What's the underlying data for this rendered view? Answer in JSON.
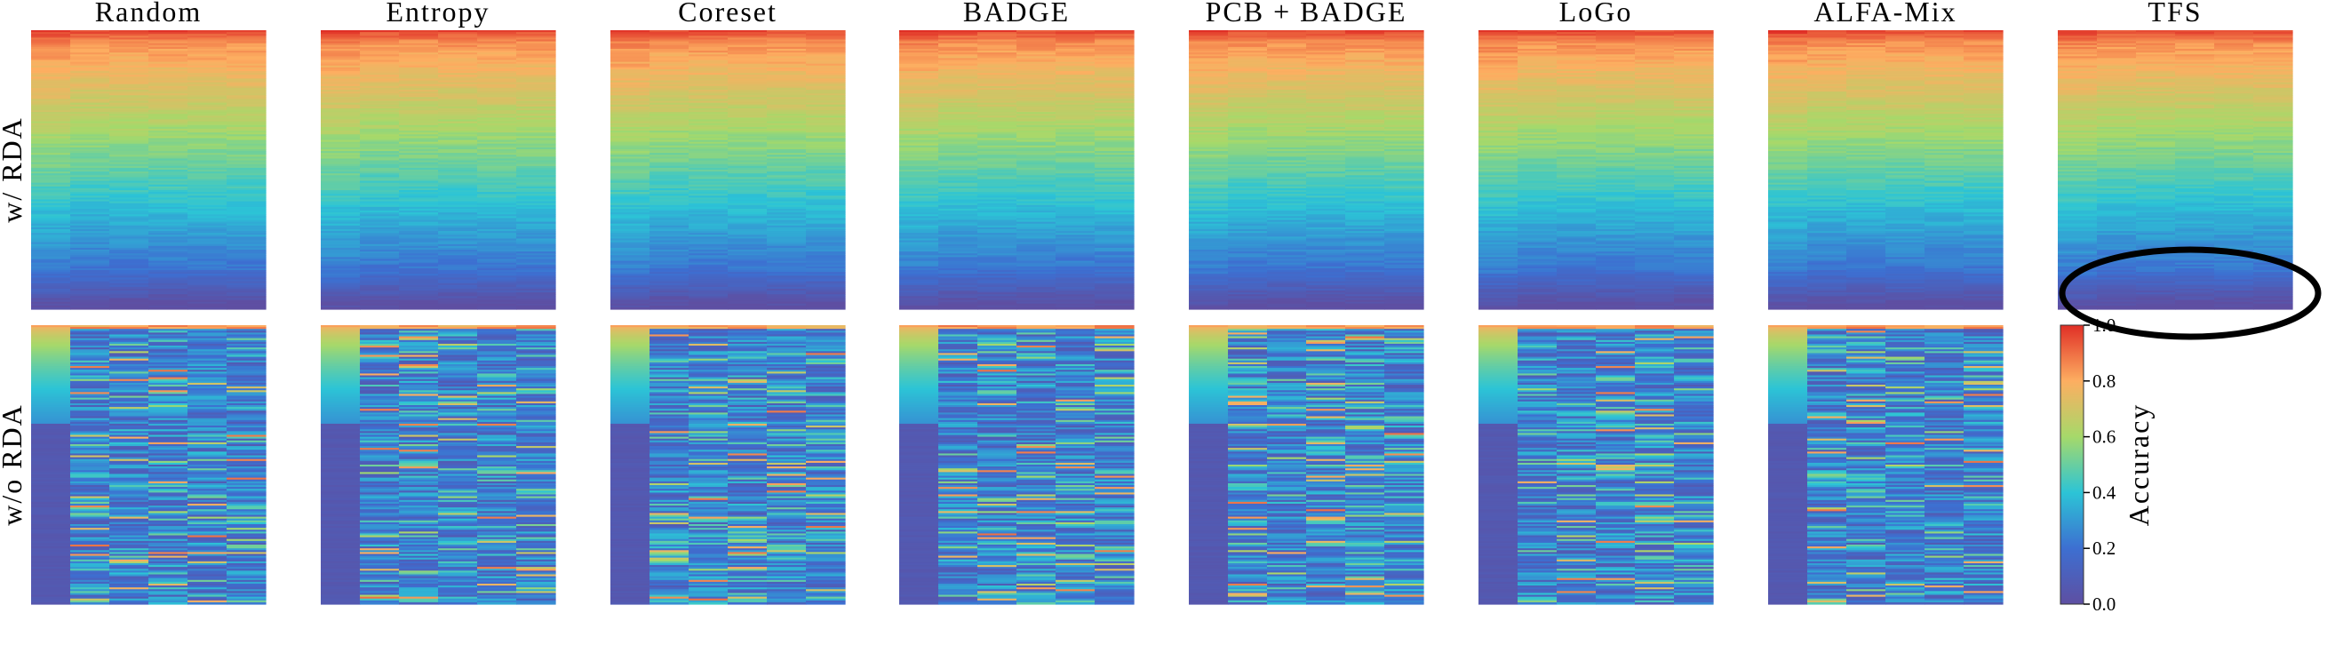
{
  "chart_data": {
    "type": "heatmap",
    "description_rows": [
      "w/ RDA",
      "w/o RDA"
    ],
    "row_labels": [
      "w/ RDA",
      "w/o RDA"
    ],
    "methods": [
      "Random",
      "Entropy",
      "Coreset",
      "BADGE",
      "PCB + BADGE",
      "LoGo",
      "ALFA-Mix",
      "TFS"
    ],
    "panels_present": {
      "w/ RDA": [
        "Random",
        "Entropy",
        "Coreset",
        "BADGE",
        "PCB + BADGE",
        "LoGo",
        "ALFA-Mix",
        "TFS"
      ],
      "w/o RDA": [
        "Random",
        "Entropy",
        "Coreset",
        "BADGE",
        "PCB + BADGE",
        "LoGo",
        "ALFA-Mix"
      ]
    },
    "value_range": [
      0.0,
      1.0
    ],
    "colormap": "rainbow (purple = 0.0, blue = 0.2, cyan = 0.4, green = 0.6, yellow/orange = 0.8, red = 1.0)",
    "colorbar": {
      "label": "Accuracy",
      "ticks": [
        0.0,
        0.2,
        0.4,
        0.6,
        0.8,
        1.0
      ],
      "tick_labels": [
        "0.0",
        "0.2",
        "0.4",
        "0.6",
        "0.8",
        "1.0"
      ]
    },
    "per_panel_pattern": {
      "w/ RDA": "accuracy sorted from ~0.85 (top rows) down to ~0.05 (bottom rows), consistent across columns",
      "w/o RDA": "first column sorted from ~0.8 down to ~0.05; remaining columns noisy, mostly 0.1–0.4 with scattered high values"
    },
    "annotation": "black ellipse highlighting bottom rows of TFS w/ RDA panel"
  }
}
